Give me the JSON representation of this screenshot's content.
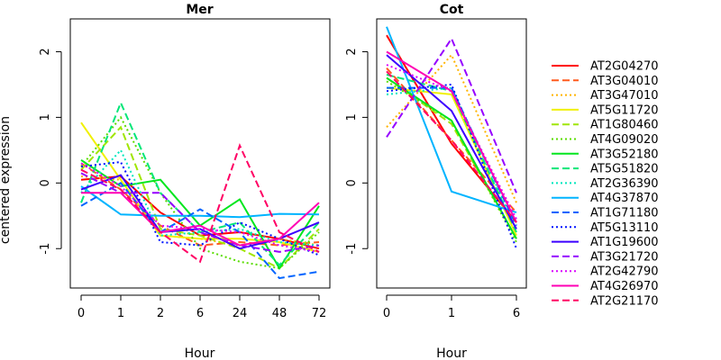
{
  "figure": {
    "ylabel": "centered expression"
  },
  "legend": {
    "placement": "right",
    "entries": [
      {
        "name": "AT2G04270",
        "color": "#ff0000",
        "dash": "solid"
      },
      {
        "name": "AT3G04010",
        "color": "#ff5a1e",
        "dash": "dashed"
      },
      {
        "name": "AT3G47010",
        "color": "#ffb400",
        "dash": "dotted"
      },
      {
        "name": "AT5G11720",
        "color": "#f0f000",
        "dash": "solid"
      },
      {
        "name": "AT1G80460",
        "color": "#a0e600",
        "dash": "dashed"
      },
      {
        "name": "AT4G09020",
        "color": "#5adc00",
        "dash": "dotted"
      },
      {
        "name": "AT3G52180",
        "color": "#00e61e",
        "dash": "solid"
      },
      {
        "name": "AT5G51820",
        "color": "#00e678",
        "dash": "dashed"
      },
      {
        "name": "AT2G36390",
        "color": "#00e6be",
        "dash": "dotted"
      },
      {
        "name": "AT4G37870",
        "color": "#00b4ff",
        "dash": "solid"
      },
      {
        "name": "AT1G71180",
        "color": "#0064ff",
        "dash": "dashed"
      },
      {
        "name": "AT5G13110",
        "color": "#0014ff",
        "dash": "dotted"
      },
      {
        "name": "AT1G19600",
        "color": "#3c00ff",
        "dash": "solid"
      },
      {
        "name": "AT3G21720",
        "color": "#9600ff",
        "dash": "dashed"
      },
      {
        "name": "AT2G42790",
        "color": "#dc00ff",
        "dash": "dotted"
      },
      {
        "name": "AT4G26970",
        "color": "#ff00b4",
        "dash": "solid"
      },
      {
        "name": "AT2G21170",
        "color": "#ff0064",
        "dash": "dashed"
      }
    ]
  },
  "chart_data": [
    {
      "type": "line",
      "title": "Mer",
      "xlabel": "Hour",
      "ylabel": "centered expression",
      "categories": [
        "0",
        "1",
        "2",
        "6",
        "24",
        "48",
        "72"
      ],
      "ylim": [
        -1.6,
        2.5
      ],
      "yticks": [
        -1,
        0,
        1,
        2
      ],
      "grid": false,
      "series": [
        {
          "name": "AT2G04270",
          "values": [
            0.05,
            0.1,
            -0.45,
            -0.8,
            -0.75,
            -0.85,
            -1.0
          ]
        },
        {
          "name": "AT3G04010",
          "values": [
            0.3,
            -0.1,
            -0.65,
            -0.95,
            -0.9,
            -0.95,
            -0.9
          ]
        },
        {
          "name": "AT3G47010",
          "values": [
            0.1,
            0.05,
            -0.8,
            -0.85,
            -0.95,
            -0.85,
            -0.95
          ]
        },
        {
          "name": "AT5G11720",
          "values": [
            0.92,
            0.05,
            -0.8,
            -0.85,
            -0.85,
            -0.9,
            -1.05
          ]
        },
        {
          "name": "AT1G80460",
          "values": [
            0.2,
            0.85,
            -0.7,
            -0.8,
            -1.0,
            -1.3,
            -0.7
          ]
        },
        {
          "name": "AT4G09020",
          "values": [
            0.25,
            1.0,
            -0.15,
            -1.0,
            -1.2,
            -1.3,
            -0.75
          ]
        },
        {
          "name": "AT3G52180",
          "values": [
            0.35,
            -0.05,
            0.05,
            -0.65,
            -0.25,
            -1.3,
            -0.35
          ]
        },
        {
          "name": "AT5G51820",
          "values": [
            -0.3,
            1.22,
            -0.15,
            -0.75,
            -0.6,
            -1.25,
            -0.6
          ]
        },
        {
          "name": "AT2G36390",
          "values": [
            -0.15,
            0.5,
            -0.8,
            -0.75,
            -0.7,
            -0.9,
            -0.95
          ]
        },
        {
          "name": "AT4G37870",
          "values": [
            -0.05,
            -0.48,
            -0.5,
            -0.5,
            -0.52,
            -0.47,
            -0.48
          ]
        },
        {
          "name": "AT1G71180",
          "values": [
            -0.35,
            0.0,
            -0.75,
            -0.4,
            -0.75,
            -1.45,
            -1.35
          ]
        },
        {
          "name": "AT5G13110",
          "values": [
            0.25,
            0.32,
            -0.9,
            -0.95,
            -0.6,
            -0.85,
            -1.1
          ]
        },
        {
          "name": "AT1G19600",
          "values": [
            -0.1,
            0.12,
            -0.75,
            -0.7,
            -1.0,
            -0.85,
            -0.6
          ]
        },
        {
          "name": "AT3G21720",
          "values": [
            0.15,
            -0.15,
            -0.15,
            -0.75,
            -0.95,
            -1.05,
            -0.95
          ]
        },
        {
          "name": "AT2G42790",
          "values": [
            0.3,
            -0.05,
            -0.65,
            -0.7,
            -0.75,
            -0.95,
            -1.05
          ]
        },
        {
          "name": "AT4G26970",
          "values": [
            -0.15,
            -0.15,
            -0.75,
            -0.65,
            -0.95,
            -0.85,
            -0.3
          ]
        },
        {
          "name": "AT2G21170",
          "values": [
            0.2,
            -0.1,
            -0.75,
            -1.2,
            0.57,
            -0.75,
            -1.05
          ]
        }
      ]
    },
    {
      "type": "line",
      "title": "Cot",
      "xlabel": "Hour",
      "categories": [
        "0",
        "1",
        "6"
      ],
      "ylim": [
        -1.6,
        2.5
      ],
      "yticks": [
        -1,
        0,
        1,
        2
      ],
      "grid": false,
      "series": [
        {
          "name": "AT2G04270",
          "values": [
            2.25,
            0.6,
            -0.6
          ]
        },
        {
          "name": "AT3G04010",
          "values": [
            1.75,
            0.65,
            -0.45
          ]
        },
        {
          "name": "AT3G47010",
          "values": [
            0.85,
            1.95,
            -0.3
          ]
        },
        {
          "name": "AT5G11720",
          "values": [
            1.45,
            1.35,
            -0.8
          ]
        },
        {
          "name": "AT1G80460",
          "values": [
            1.6,
            0.9,
            -0.85
          ]
        },
        {
          "name": "AT4G09020",
          "values": [
            1.55,
            0.95,
            -0.9
          ]
        },
        {
          "name": "AT3G52180",
          "values": [
            1.6,
            0.95,
            -0.85
          ]
        },
        {
          "name": "AT5G51820",
          "values": [
            1.65,
            1.4,
            -0.75
          ]
        },
        {
          "name": "AT2G36390",
          "values": [
            1.35,
            1.45,
            -0.7
          ]
        },
        {
          "name": "AT4G37870",
          "values": [
            2.38,
            -0.13,
            -0.45
          ]
        },
        {
          "name": "AT1G71180",
          "values": [
            1.45,
            1.45,
            -0.65
          ]
        },
        {
          "name": "AT5G13110",
          "values": [
            1.4,
            1.5,
            -1.0
          ]
        },
        {
          "name": "AT1G19600",
          "values": [
            1.95,
            1.1,
            -0.7
          ]
        },
        {
          "name": "AT3G21720",
          "values": [
            0.7,
            2.2,
            -0.15
          ]
        },
        {
          "name": "AT2G42790",
          "values": [
            1.8,
            1.4,
            -0.55
          ]
        },
        {
          "name": "AT4G26970",
          "values": [
            2.0,
            1.4,
            -0.6
          ]
        },
        {
          "name": "AT2G21170",
          "values": [
            1.7,
            0.65,
            -0.6
          ]
        }
      ]
    }
  ]
}
